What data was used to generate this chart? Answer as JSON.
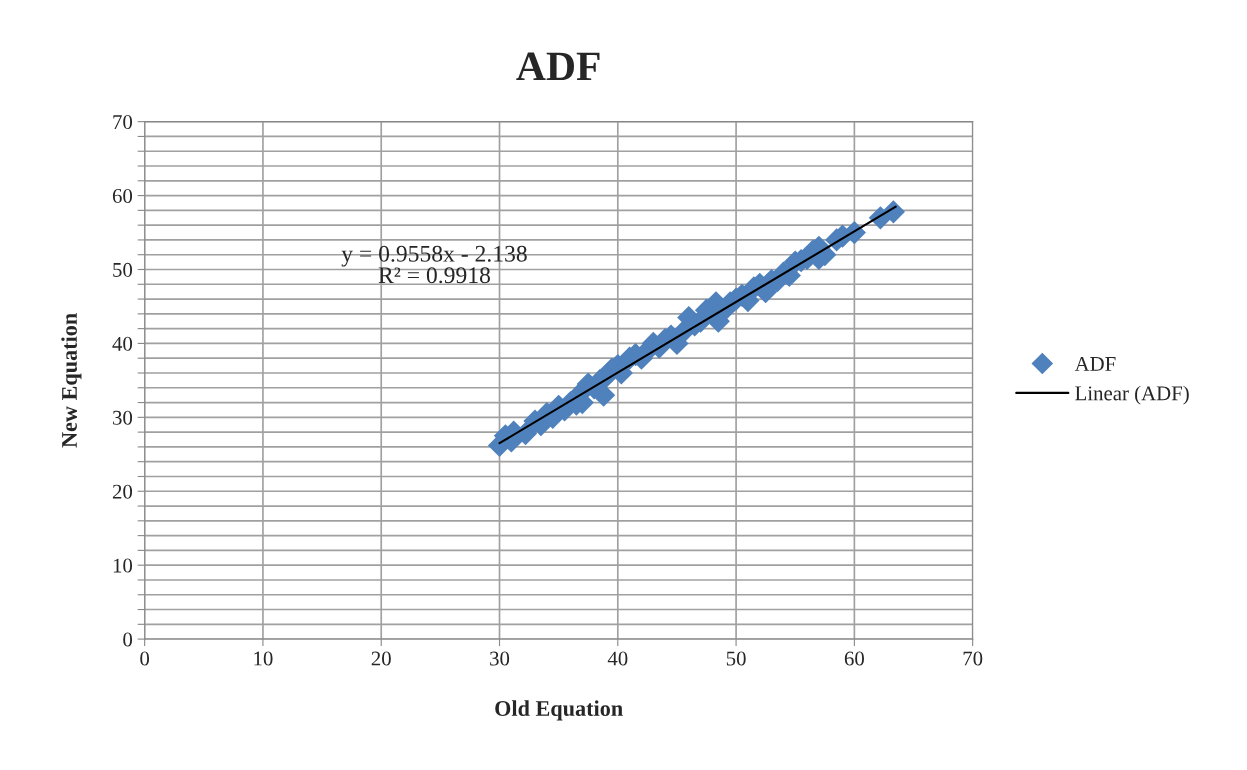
{
  "chart_data": {
    "type": "scatter",
    "title": "ADF",
    "xlabel": "Old Equation",
    "ylabel": "New Equation",
    "xlim": [
      0,
      70
    ],
    "xticks": [
      0,
      10,
      20,
      30,
      40,
      50,
      60,
      70
    ],
    "ylim": [
      0,
      70
    ],
    "yticks": [
      0,
      {
        "value": 2,
        "label": null
      },
      {
        "value": 4,
        "label": null
      },
      {
        "value": 6,
        "label": null
      },
      {
        "value": 8,
        "label": null
      },
      10,
      {
        "value": 12,
        "label": null
      },
      {
        "value": 14,
        "label": null
      },
      {
        "value": 16,
        "label": null
      },
      {
        "value": 18,
        "label": null
      },
      20,
      {
        "value": 22,
        "label": null
      },
      {
        "value": 24,
        "label": null
      },
      {
        "value": 26,
        "label": null
      },
      {
        "value": 28,
        "label": null
      },
      30,
      {
        "value": 32,
        "label": null
      },
      {
        "value": 34,
        "label": null
      },
      {
        "value": 36,
        "label": null
      },
      {
        "value": 38,
        "label": null
      },
      40,
      {
        "value": 42,
        "label": null
      },
      {
        "value": 44,
        "label": null
      },
      {
        "value": 46,
        "label": null
      },
      {
        "value": 48,
        "label": null
      },
      50,
      {
        "value": 52,
        "label": null
      },
      {
        "value": 54,
        "label": null
      },
      {
        "value": 56,
        "label": null
      },
      {
        "value": 58,
        "label": null
      },
      60,
      {
        "value": 62,
        "label": null
      },
      {
        "value": 64,
        "label": null
      },
      {
        "value": 66,
        "label": null
      },
      {
        "value": 68,
        "label": null
      },
      70
    ],
    "grid": true,
    "legend": "right",
    "marker": "diamond",
    "annotations": [
      "y = 0.9558x - 2.138\nR² = 0.9918"
    ],
    "series": [
      {
        "name": "ADF",
        "color": "#4f81bd",
        "x": [
          30,
          30.5,
          31,
          31.2,
          32.2,
          33,
          33.5,
          34,
          34.5,
          35,
          35.5,
          36,
          36.5,
          37,
          37,
          37.5,
          38,
          38.5,
          38.8,
          39,
          39.5,
          40,
          40.3,
          41,
          41.5,
          42,
          42.5,
          43,
          43.5,
          44,
          44.5,
          45,
          45.5,
          46,
          46.5,
          47,
          47.5,
          48.3,
          48.5,
          49,
          49.5,
          50,
          50.5,
          51,
          51.5,
          52,
          52.5,
          53,
          53.5,
          54,
          54.5,
          55,
          55.5,
          56,
          56.5,
          57,
          57,
          57.5,
          58.5,
          59,
          60,
          62.2,
          63.3
        ],
        "values": [
          26.2,
          27.5,
          26.8,
          28,
          27.8,
          29.5,
          29,
          30.5,
          30,
          31.5,
          31,
          32,
          31.8,
          33.5,
          32,
          34.5,
          34,
          35,
          33,
          35.5,
          36.5,
          37,
          36,
          38,
          38.5,
          38,
          39,
          40,
          39.5,
          40.5,
          41,
          40,
          41.5,
          43.5,
          42.5,
          43,
          44.5,
          45.5,
          43,
          44.5,
          45.5,
          46,
          46.5,
          45.8,
          47.5,
          48,
          47,
          48.5,
          48.5,
          49.5,
          49.2,
          51,
          51.2,
          51.5,
          52.5,
          51.5,
          53,
          52,
          54,
          54.5,
          55,
          57,
          57.8
        ]
      },
      {
        "name": "Linear (ADF)",
        "type": "line",
        "color": "#000000",
        "marker": "none",
        "line_style": "solid",
        "x": [
          30,
          63.5
        ],
        "values": [
          26.5,
          58.5
        ]
      }
    ]
  }
}
